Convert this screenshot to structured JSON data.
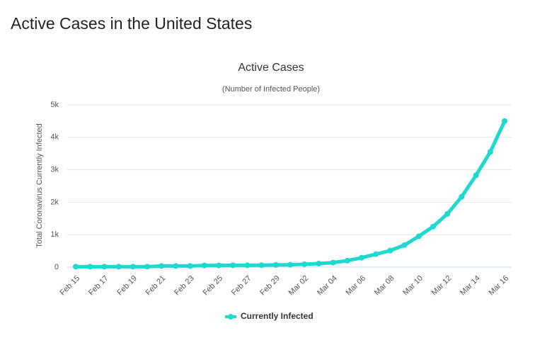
{
  "page_title": "Active Cases in the United States",
  "chart_data": {
    "type": "line",
    "title": "Active Cases",
    "subtitle": "(Number of Infected People)",
    "y_label": "Total Coronavirus Currently Infected",
    "categories": [
      "Feb 15",
      null,
      "Feb 17",
      null,
      "Feb 19",
      null,
      "Feb 21",
      null,
      "Feb 23",
      null,
      "Feb 25",
      null,
      "Feb 27",
      null,
      "Feb 29",
      null,
      "Mar 02",
      null,
      "Mar 04",
      null,
      "Mar 06",
      null,
      "Mar 08",
      null,
      "Mar 10",
      null,
      "Mar 12",
      null,
      "Mar 14",
      null,
      "Mar 16"
    ],
    "series": [
      {
        "name": "Currently Infected",
        "color": "#1fd8cf",
        "values": [
          15,
          15,
          15,
          15,
          15,
          15,
          35,
          35,
          35,
          53,
          53,
          57,
          58,
          60,
          68,
          75,
          90,
          110,
          140,
          200,
          290,
          400,
          510,
          680,
          950,
          1250,
          1640,
          2170,
          2830,
          3550,
          4500
        ]
      }
    ],
    "ylim": [
      0,
      5000
    ],
    "yticks": [
      0,
      {
        "value": 1000,
        "label": "1k"
      },
      {
        "value": 2000,
        "label": "2k"
      },
      {
        "value": 3000,
        "label": "3k"
      },
      {
        "value": 4000,
        "label": "4k"
      },
      {
        "value": 5000,
        "label": "5k"
      }
    ],
    "grid": true,
    "legend": "bottom"
  }
}
